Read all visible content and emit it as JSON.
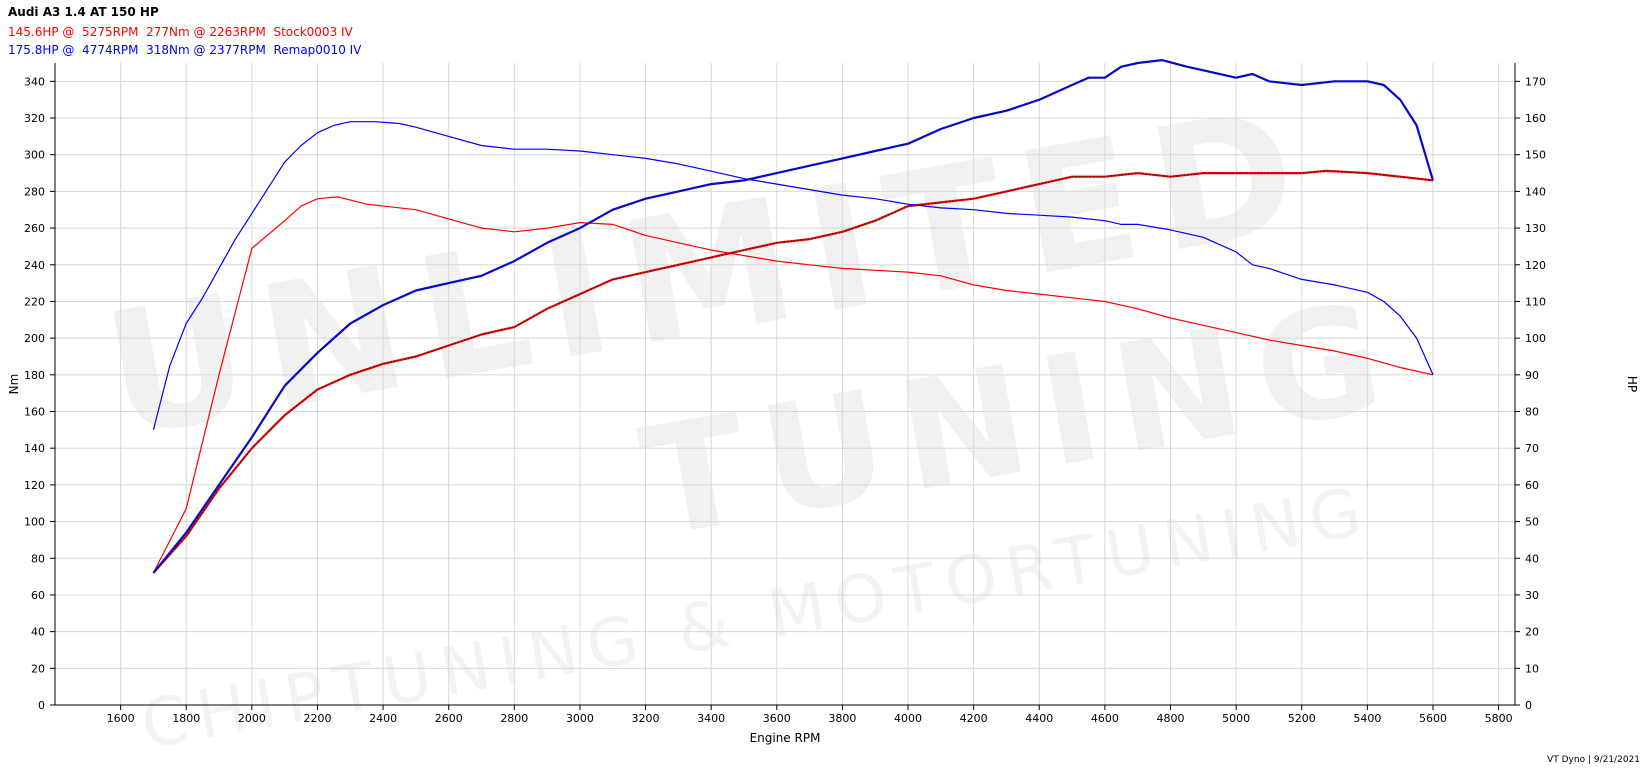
{
  "header": {
    "title": "Audi A3 1.4 AT 150 HP",
    "stock_info": "145.6HP @  5275RPM  277Nm @ 2263RPM  Stock0003 IV",
    "remap_info": "175.8HP @  4774RPM  318Nm @ 2377RPM  Remap0010 IV"
  },
  "footer": {
    "text": "VT Dyno | 9/21/2021"
  },
  "watermark": {
    "line1": "UNLIMITED",
    "line2": "TUNING",
    "line3": "CHIPTUNING & MOTORTUNING"
  },
  "colors": {
    "stock": "#ff0000",
    "remap": "#0000ff",
    "grid": "#d8d8d8",
    "axis": "#000000"
  },
  "chart_data": {
    "type": "line",
    "title": "Audi A3 1.4 AT 150 HP",
    "xlabel": "Engine RPM",
    "ylabel_left": "Nm",
    "ylabel_right": "HP",
    "xlim": [
      1400,
      5850
    ],
    "ylim_left": [
      0,
      350
    ],
    "ylim_right": [
      0,
      175
    ],
    "grid": true,
    "x_ticks": [
      1600,
      1800,
      2000,
      2200,
      2400,
      2600,
      2800,
      3000,
      3200,
      3400,
      3600,
      3800,
      4000,
      4200,
      4400,
      4600,
      4800,
      5000,
      5200,
      5400,
      5600,
      5800
    ],
    "y_ticks_left": [
      0,
      20,
      40,
      60,
      80,
      100,
      120,
      140,
      160,
      180,
      200,
      220,
      240,
      260,
      280,
      300,
      320,
      340
    ],
    "y_ticks_right": [
      0,
      10,
      20,
      30,
      40,
      50,
      60,
      70,
      80,
      90,
      100,
      110,
      120,
      130,
      140,
      150,
      160,
      170
    ],
    "series": [
      {
        "name": "Stock0003 IV",
        "quantity": "torque",
        "unit": "Nm",
        "axis": "left",
        "color": "#ff0000",
        "x": [
          1700,
          1800,
          1900,
          2000,
          2100,
          2150,
          2200,
          2263,
          2350,
          2500,
          2600,
          2700,
          2800,
          2900,
          3000,
          3100,
          3200,
          3300,
          3400,
          3500,
          3600,
          3700,
          3800,
          3900,
          4000,
          4100,
          4200,
          4300,
          4400,
          4500,
          4600,
          4700,
          4800,
          4900,
          5000,
          5100,
          5200,
          5300,
          5400,
          5500,
          5600
        ],
        "y": [
          72,
          107,
          180,
          249,
          264,
          272,
          276,
          277,
          273,
          270,
          265,
          260,
          258,
          260,
          263,
          262,
          256,
          252,
          248,
          245,
          242,
          240,
          238,
          237,
          236,
          234,
          229,
          226,
          224,
          222,
          220,
          216,
          211,
          207,
          203,
          199,
          196,
          193,
          189,
          184,
          180
        ]
      },
      {
        "name": "Stock0003 IV",
        "quantity": "power",
        "unit": "HP",
        "axis": "right",
        "color": "#ff0000",
        "x": [
          1700,
          1800,
          1900,
          2000,
          2100,
          2200,
          2300,
          2400,
          2500,
          2600,
          2700,
          2800,
          2900,
          3000,
          3100,
          3200,
          3300,
          3400,
          3500,
          3600,
          3700,
          3800,
          3900,
          4000,
          4100,
          4200,
          4300,
          4400,
          4500,
          4600,
          4700,
          4800,
          4900,
          5000,
          5100,
          5200,
          5275,
          5400,
          5500,
          5600
        ],
        "y": [
          36,
          46,
          59,
          70,
          79,
          86,
          90,
          93,
          95,
          98,
          101,
          103,
          108,
          112,
          116,
          118,
          120,
          122,
          124,
          126,
          127,
          129,
          132,
          136,
          137,
          138,
          140,
          142,
          144,
          144,
          145,
          144,
          145,
          145,
          145,
          145,
          145.6,
          145,
          144,
          143
        ]
      },
      {
        "name": "Remap0010 IV",
        "quantity": "torque",
        "unit": "Nm",
        "axis": "left",
        "color": "#0000ff",
        "x": [
          1700,
          1750,
          1800,
          1850,
          1900,
          1950,
          2000,
          2050,
          2100,
          2150,
          2200,
          2250,
          2300,
          2377,
          2450,
          2500,
          2600,
          2700,
          2800,
          2900,
          3000,
          3100,
          3200,
          3300,
          3400,
          3500,
          3600,
          3700,
          3800,
          3900,
          4000,
          4100,
          4200,
          4300,
          4400,
          4500,
          4600,
          4650,
          4700,
          4800,
          4900,
          5000,
          5050,
          5100,
          5200,
          5300,
          5400,
          5450,
          5500,
          5550,
          5600
        ],
        "y": [
          150,
          185,
          208,
          222,
          238,
          254,
          268,
          282,
          296,
          305,
          312,
          316,
          318,
          318,
          317,
          315,
          310,
          305,
          303,
          303,
          302,
          300,
          298,
          295,
          291,
          287,
          284,
          281,
          278,
          276,
          273,
          271,
          270,
          268,
          267,
          266,
          264,
          262,
          262,
          259,
          255,
          247,
          240,
          238,
          232,
          229,
          225,
          220,
          212,
          200,
          180
        ]
      },
      {
        "name": "Remap0010 IV",
        "quantity": "power",
        "unit": "HP",
        "axis": "right",
        "color": "#0000ff",
        "x": [
          1700,
          1800,
          1900,
          2000,
          2100,
          2200,
          2300,
          2400,
          2500,
          2600,
          2700,
          2800,
          2900,
          3000,
          3100,
          3200,
          3300,
          3400,
          3500,
          3600,
          3700,
          3800,
          3900,
          4000,
          4100,
          4200,
          4300,
          4400,
          4500,
          4550,
          4600,
          4650,
          4700,
          4774,
          4850,
          4900,
          5000,
          5050,
          5100,
          5200,
          5300,
          5400,
          5450,
          5500,
          5550,
          5600
        ],
        "y": [
          36,
          47,
          60,
          73,
          87,
          96,
          104,
          109,
          113,
          115,
          117,
          121,
          126,
          130,
          135,
          138,
          140,
          142,
          143,
          145,
          147,
          149,
          151,
          153,
          157,
          160,
          162,
          165,
          169,
          171,
          171,
          174,
          175,
          175.8,
          174,
          173,
          171,
          172,
          170,
          169,
          170,
          170,
          169,
          165,
          158,
          143
        ]
      }
    ]
  }
}
